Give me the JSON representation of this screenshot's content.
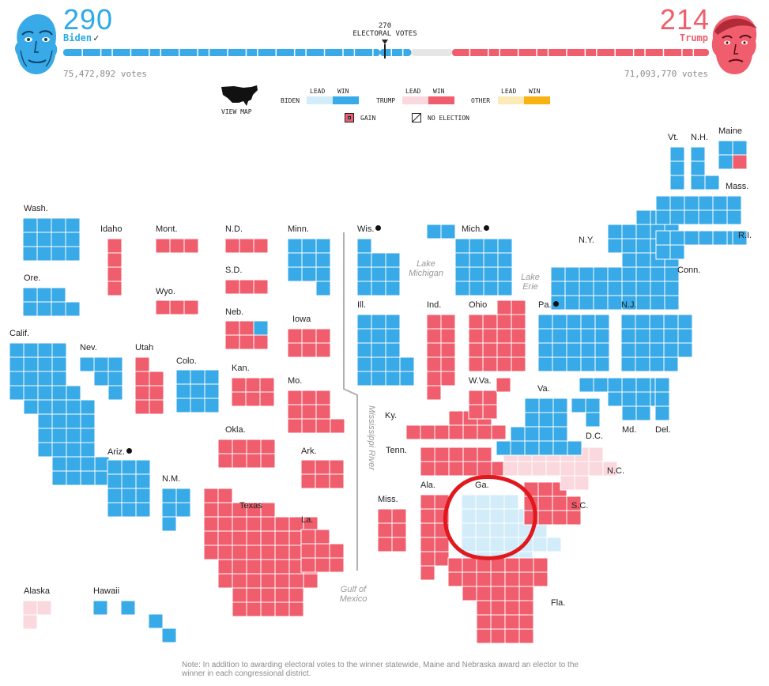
{
  "header": {
    "biden": {
      "electoral_votes": "290",
      "name": "Biden",
      "check": "✓",
      "popular_votes": "75,472,892 votes"
    },
    "trump": {
      "electoral_votes": "214",
      "name": "Trump",
      "popular_votes": "71,093,770 votes"
    },
    "threshold": {
      "number": "270",
      "label": "ELECTORAL VOTES"
    },
    "progress": {
      "biden_win": 264,
      "biden_lead": 26,
      "undecided": 34,
      "trump_win": 214,
      "total": 538
    }
  },
  "legend": {
    "view_map": "VIEW MAP",
    "lead": "LEAD",
    "win": "WIN",
    "biden": "BIDEN",
    "trump": "TRUMP",
    "other": "OTHER",
    "gain": "GAIN",
    "no_election": "NO ELECTION"
  },
  "colors": {
    "biden_win": "#38aae8",
    "biden_lead": "#d2ecfa",
    "trump_win": "#f05d6d",
    "trump_lead": "#fbd8dd",
    "other_lead": "#fbe9b8",
    "other_win": "#f7b314",
    "circle": "#e0191e",
    "grid_line": "#ffffff"
  },
  "states": [
    {
      "name": "Wash.",
      "outcome": "biden_win"
    },
    {
      "name": "Ore.",
      "outcome": "biden_win"
    },
    {
      "name": "Calif.",
      "outcome": "biden_win"
    },
    {
      "name": "Idaho",
      "outcome": "trump_win"
    },
    {
      "name": "Nev.",
      "outcome": "biden_win"
    },
    {
      "name": "Utah",
      "outcome": "trump_win"
    },
    {
      "name": "Ariz.",
      "outcome": "biden_win",
      "gain": true
    },
    {
      "name": "Mont.",
      "outcome": "trump_win"
    },
    {
      "name": "Wyo.",
      "outcome": "trump_win"
    },
    {
      "name": "Colo.",
      "outcome": "biden_win"
    },
    {
      "name": "N.M.",
      "outcome": "biden_win"
    },
    {
      "name": "N.D.",
      "outcome": "trump_win"
    },
    {
      "name": "S.D.",
      "outcome": "trump_win"
    },
    {
      "name": "Neb.",
      "outcome": "trump_win"
    },
    {
      "name": "Kan.",
      "outcome": "trump_win"
    },
    {
      "name": "Okla.",
      "outcome": "trump_win"
    },
    {
      "name": "Texas",
      "outcome": "trump_win"
    },
    {
      "name": "Minn.",
      "outcome": "biden_win"
    },
    {
      "name": "Iowa",
      "outcome": "trump_win"
    },
    {
      "name": "Mo.",
      "outcome": "trump_win"
    },
    {
      "name": "Ark.",
      "outcome": "trump_win"
    },
    {
      "name": "La.",
      "outcome": "trump_win"
    },
    {
      "name": "Wis.",
      "outcome": "biden_win",
      "gain": true
    },
    {
      "name": "Ill.",
      "outcome": "biden_win"
    },
    {
      "name": "Mich.",
      "outcome": "biden_win",
      "gain": true
    },
    {
      "name": "Ind.",
      "outcome": "trump_win"
    },
    {
      "name": "Ohio",
      "outcome": "trump_win"
    },
    {
      "name": "Ky.",
      "outcome": "trump_win"
    },
    {
      "name": "Tenn.",
      "outcome": "trump_win"
    },
    {
      "name": "Miss.",
      "outcome": "trump_win"
    },
    {
      "name": "Ala.",
      "outcome": "trump_win"
    },
    {
      "name": "Ga.",
      "outcome": "biden_lead"
    },
    {
      "name": "Fla.",
      "outcome": "trump_win"
    },
    {
      "name": "S.C.",
      "outcome": "trump_win"
    },
    {
      "name": "N.C.",
      "outcome": "trump_lead"
    },
    {
      "name": "W.Va.",
      "outcome": "trump_win"
    },
    {
      "name": "Va.",
      "outcome": "biden_win"
    },
    {
      "name": "Pa.",
      "outcome": "biden_win",
      "gain": true
    },
    {
      "name": "N.Y.",
      "outcome": "biden_win"
    },
    {
      "name": "N.J.",
      "outcome": "biden_win"
    },
    {
      "name": "Md.",
      "outcome": "biden_win"
    },
    {
      "name": "Del.",
      "outcome": "biden_win"
    },
    {
      "name": "D.C.",
      "outcome": "biden_win"
    },
    {
      "name": "Vt.",
      "outcome": "biden_win"
    },
    {
      "name": "N.H.",
      "outcome": "biden_win"
    },
    {
      "name": "Maine",
      "outcome": "biden_win"
    },
    {
      "name": "Mass.",
      "outcome": "biden_win"
    },
    {
      "name": "R.I.",
      "outcome": "biden_win"
    },
    {
      "name": "Conn.",
      "outcome": "biden_win"
    },
    {
      "name": "Alaska",
      "outcome": "trump_lead"
    },
    {
      "name": "Hawaii",
      "outcome": "biden_win"
    }
  ],
  "water_labels": {
    "lake_michigan": "Lake Michigan",
    "lake_erie": "Lake Erie",
    "mississippi": "Mississippi River",
    "gulf": "Gulf of Mexico"
  },
  "note": "Note: In addition to awarding electoral votes to the winner statewide, Maine and Nebraska award an elector to the winner in each congressional district."
}
